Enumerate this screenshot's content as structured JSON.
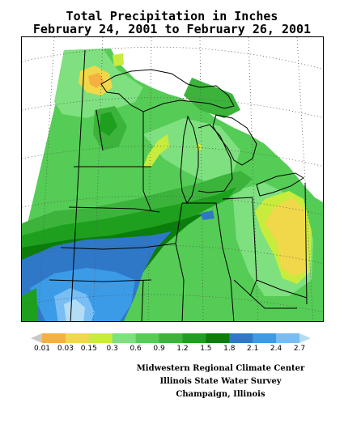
{
  "title_line1": "Total Precipitation in Inches",
  "title_line2": "February 24, 2001  to February 26, 2001",
  "legend": {
    "ticks": [
      "0.01",
      "0.03",
      "0.15",
      "0.3",
      "0.6",
      "0.9",
      "1.2",
      "1.5",
      "1.8",
      "2.1",
      "2.4",
      "2.7"
    ],
    "colors": [
      "#c8c8c8",
      "#f5b041",
      "#f0d84a",
      "#c8ec3c",
      "#7fe07f",
      "#55cc55",
      "#3cb43c",
      "#1ea01e",
      "#0a7d0a",
      "#2f78c8",
      "#3c9be6",
      "#78bef5",
      "#b4dcf5"
    ]
  },
  "credits": {
    "line1": "Midwestern Regional Climate Center",
    "line2": "Illinois State Water Survey",
    "line3": "Champaign, Illinois"
  }
}
